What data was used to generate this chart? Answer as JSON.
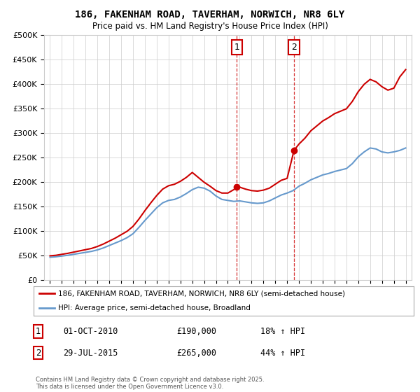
{
  "title": "186, FAKENHAM ROAD, TAVERHAM, NORWICH, NR8 6LY",
  "subtitle": "Price paid vs. HM Land Registry's House Price Index (HPI)",
  "ylim": [
    0,
    500000
  ],
  "yticks": [
    0,
    50000,
    100000,
    150000,
    200000,
    250000,
    300000,
    350000,
    400000,
    450000,
    500000
  ],
  "xlim_start": 1994.5,
  "xlim_end": 2025.5,
  "legend_line1": "186, FAKENHAM ROAD, TAVERHAM, NORWICH, NR8 6LY (semi-detached house)",
  "legend_line2": "HPI: Average price, semi-detached house, Broadland",
  "transaction1_date": 2010.75,
  "transaction1_label": "1",
  "transaction1_price": 190000,
  "transaction1_hpi": "18% ↑ HPI",
  "transaction1_text": "01-OCT-2010",
  "transaction2_date": 2015.58,
  "transaction2_label": "2",
  "transaction2_price": 265000,
  "transaction2_hpi": "44% ↑ HPI",
  "transaction2_text": "29-JUL-2015",
  "footer": "Contains HM Land Registry data © Crown copyright and database right 2025.\nThis data is licensed under the Open Government Licence v3.0.",
  "line1_color": "#cc0000",
  "line2_color": "#6699cc",
  "vline_color": "#cc0000",
  "marker_color": "#cc0000",
  "background_color": "#ffffff",
  "grid_color": "#cccccc"
}
